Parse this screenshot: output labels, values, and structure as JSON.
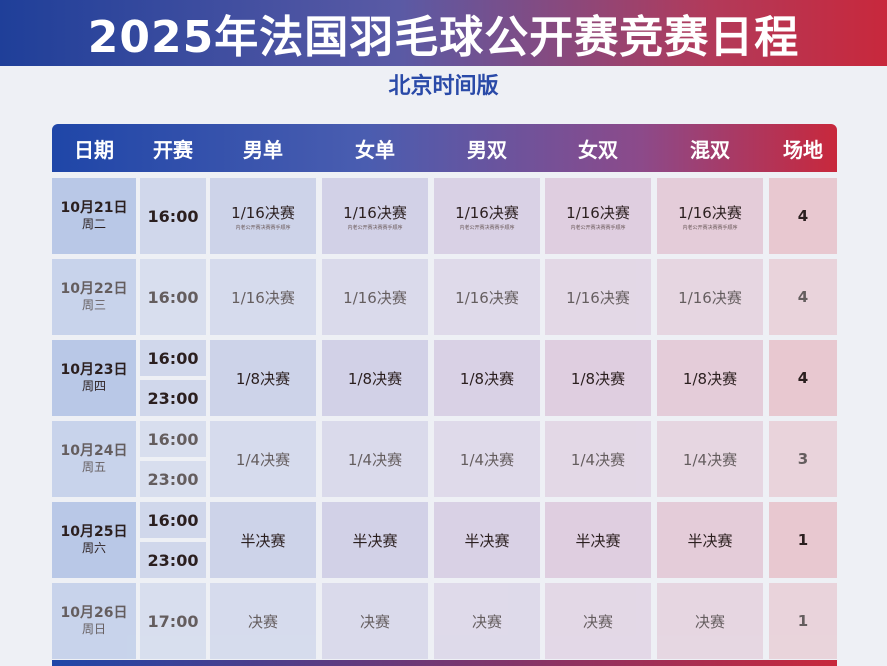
{
  "title": "2025年法国羽毛球公开赛竞赛日程",
  "subtitle": "北京时间版",
  "headers": [
    "日期",
    "开赛",
    "男单",
    "女单",
    "男双",
    "女双",
    "混双",
    "场地"
  ],
  "rows": [
    {
      "date": "10月21日",
      "weekday": "周二",
      "times": [
        "16:00"
      ],
      "round": "1/16决赛",
      "note": "内老公开赛决赛赛手顺序",
      "courts": "4"
    },
    {
      "date": "10月22日",
      "weekday": "周三",
      "times": [
        "16:00"
      ],
      "round": "1/16决赛",
      "note": "",
      "courts": "4"
    },
    {
      "date": "10月23日",
      "weekday": "周四",
      "times": [
        "16:00",
        "23:00"
      ],
      "round": "1/8决赛",
      "note": "",
      "courts": "4"
    },
    {
      "date": "10月24日",
      "weekday": "周五",
      "times": [
        "16:00",
        "23:00"
      ],
      "round": "1/4决赛",
      "note": "",
      "courts": "3"
    },
    {
      "date": "10月25日",
      "weekday": "周六",
      "times": [
        "16:00",
        "23:00"
      ],
      "round": "半决赛",
      "note": "",
      "courts": "1"
    },
    {
      "date": "10月26日",
      "weekday": "周日",
      "times": [
        "17:00"
      ],
      "round": "决赛",
      "note": "",
      "courts": "1"
    }
  ]
}
